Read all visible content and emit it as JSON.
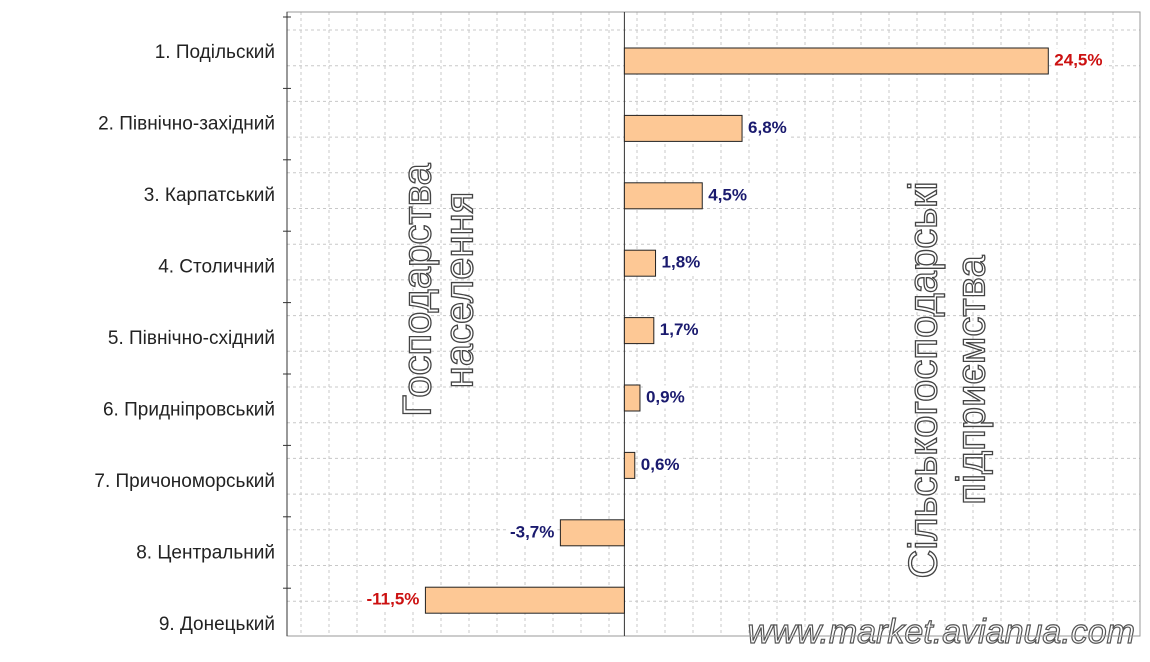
{
  "chart_data": {
    "type": "barh",
    "categories": [
      "1. Подільский",
      "2. Північно-західний",
      "3. Карпатський",
      "4. Столичний",
      "5. Північно-східний",
      "6. Придніпровський",
      "7. Причономорський",
      "8. Центральний",
      "9. Донецький"
    ],
    "values": [
      24.5,
      6.8,
      4.5,
      1.8,
      1.7,
      0.9,
      0.6,
      -3.7,
      -11.5
    ],
    "value_labels": [
      "24,5%",
      "6,8%",
      "4,5%",
      "1,8%",
      "1,7%",
      "0,9%",
      "0,6%",
      "-3,7%",
      "-11,5%"
    ],
    "value_label_colors": [
      "#cc1111",
      "#1a1a6e",
      "#1a1a6e",
      "#1a1a6e",
      "#1a1a6e",
      "#1a1a6e",
      "#1a1a6e",
      "#1a1a6e",
      "#cc1111"
    ],
    "color": "#fdc895",
    "xlim": [
      -19.5,
      29.8
    ],
    "grid": true,
    "annotations": {
      "left": [
        "Господарства",
        "населення"
      ],
      "right": [
        "Сільськогосподарські",
        "підприємства"
      ],
      "watermark": "www.market.avianua.com"
    }
  }
}
